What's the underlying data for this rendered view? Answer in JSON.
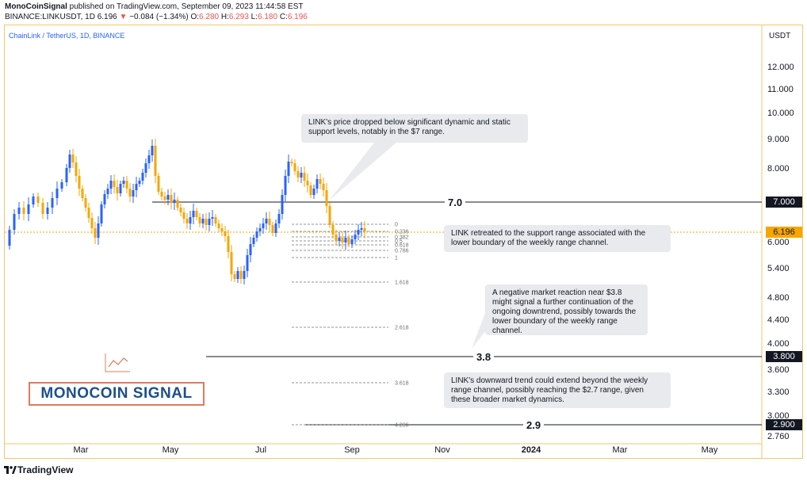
{
  "header": {
    "author": "MonoCoinSignal",
    "published_text": "published on TradingView.com, September 09, 2023 11:44:58 EST",
    "symbol": "BINANCE:LINKUSDT, 1D",
    "last": "6.196",
    "change": "−0.084 (−1.34%)",
    "o_label": "O:",
    "o_value": "6.280",
    "h_label": "H:",
    "h_value": "6.293",
    "l_label": "L:",
    "l_value": "6.180",
    "c_label": "C:",
    "c_value": "6.196"
  },
  "chart": {
    "pair_label": "ChainLink / TetherUS, 1D, BINANCE",
    "currency": "USDT",
    "y_ticks": [
      "12.000",
      "11.000",
      "10.000",
      "9.000",
      "8.000",
      "6.000",
      "5.400",
      "4.800",
      "4.400",
      "4.000",
      "3.600",
      "3.300",
      "3.000",
      "2.760"
    ],
    "x_ticks": [
      "Mar",
      "May",
      "Jul",
      "Sep",
      "Nov",
      "2024",
      "Mar",
      "May"
    ],
    "fib_labels": [
      "0",
      "0.236",
      "0.382",
      "0.5",
      "0.618",
      "0.786",
      "1",
      "1.618",
      "2.618",
      "3.618",
      "4.236"
    ],
    "levels": [
      {
        "label": "7.0",
        "badge": "7.000"
      },
      {
        "label": "3.8",
        "badge": "3.800"
      },
      {
        "label": "2.9",
        "badge": "2.900"
      }
    ],
    "current_price_badge": "6.196",
    "colors": {
      "up": "#2962ff",
      "down": "#f7a600",
      "current": "#f7a600"
    }
  },
  "notes": [
    "LINK's price dropped below significant dynamic and static support levels, notably in the $7 range.",
    "LINK retreated to the support range associated with the lower boundary of the weekly range channel.",
    "A negative market reaction near $3.8 might signal a further continuation of the ongoing downtrend, possibly towards the lower boundary of the weekly range channel.",
    "LINK's downward trend could extend beyond the weekly range channel, possibly reaching the $2.7 range, given these broader market dynamics."
  ],
  "logo_text": "MONOCOIN SIGNAL",
  "brand": "TradingView",
  "icons": {
    "tv_logo": "tradingview-logo-icon",
    "chart_icon": "mini-chart-icon"
  }
}
